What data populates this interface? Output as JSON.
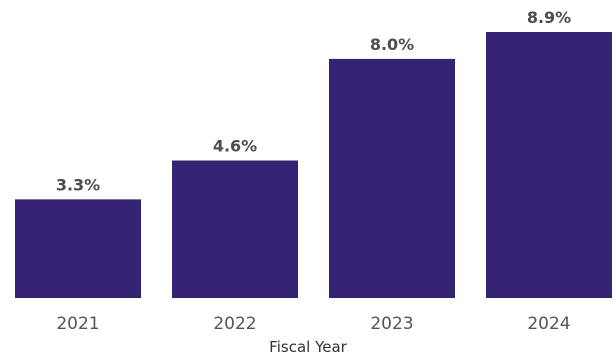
{
  "chart_data": {
    "type": "bar",
    "categories": [
      "2021",
      "2022",
      "2023",
      "2024"
    ],
    "values": [
      3.3,
      4.6,
      8.0,
      8.9
    ],
    "data_labels": [
      "3.3%",
      "4.6%",
      "8.0%",
      "8.9%"
    ],
    "xlabel": "Fiscal Year",
    "ylabel": "",
    "ylim": [
      0,
      8.9
    ],
    "grid": false,
    "bar_color": "#352373"
  }
}
